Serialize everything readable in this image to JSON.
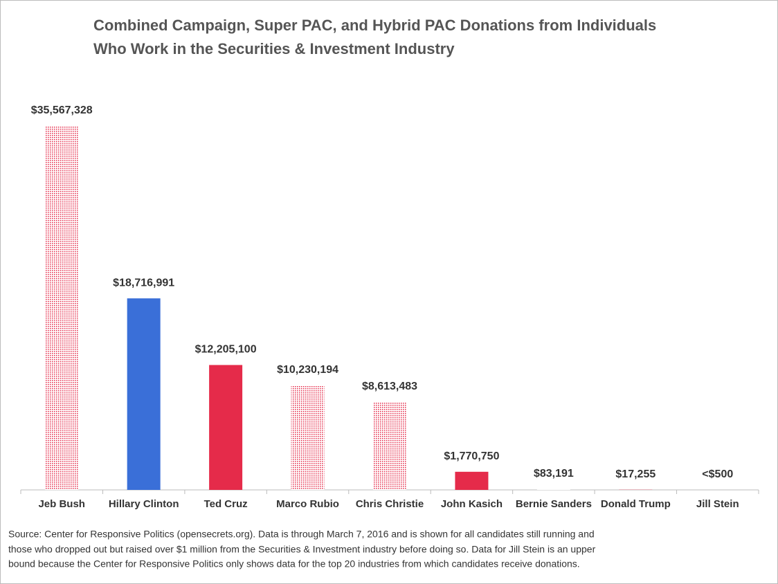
{
  "chart_data": {
    "type": "bar",
    "title": [
      "Combined Campaign, Super PAC, and Hybrid PAC Donations from Individuals",
      "Who Work in the Securities & Investment Industry"
    ],
    "categories": [
      "Jeb Bush",
      "Hillary Clinton",
      "Ted Cruz",
      "Marco Rubio",
      "Chris Christie",
      "John Kasich",
      "Bernie Sanders",
      "Donald Trump",
      "Jill Stein"
    ],
    "values": [
      35567328,
      18716991,
      12205100,
      10230194,
      8613483,
      1770750,
      83191,
      17255,
      500
    ],
    "value_labels": [
      "$35,567,328",
      "$18,716,991",
      "$12,205,100",
      "$10,230,194",
      "$8,613,483",
      "$1,770,750",
      "$83,191",
      "$17,255",
      "<$500"
    ],
    "colors": [
      "#e52b4a",
      "#3a6fd8",
      "#e52b4a",
      "#e52b4a",
      "#e52b4a",
      "#e52b4a",
      "#e52b4a",
      "#e52b4a",
      "#3a6fd8"
    ],
    "fill_styles": [
      "dotted",
      "solid",
      "solid",
      "dotted",
      "dotted",
      "solid",
      "dotted",
      "solid",
      "solid"
    ],
    "ylim": [
      0,
      35567328
    ],
    "source": [
      "Source: Center for Responsive Politics (opensecrets.org).  Data is through March 7, 2016 and is shown for all candidates still running and",
      "those who dropped out but raised over $1 million from the Securities & Investment industry before doing so.  Data for Jill Stein is an upper",
      "bound because the Center for Responsive Politics only shows data for the top 20 industries from which candidates receive donations."
    ]
  }
}
